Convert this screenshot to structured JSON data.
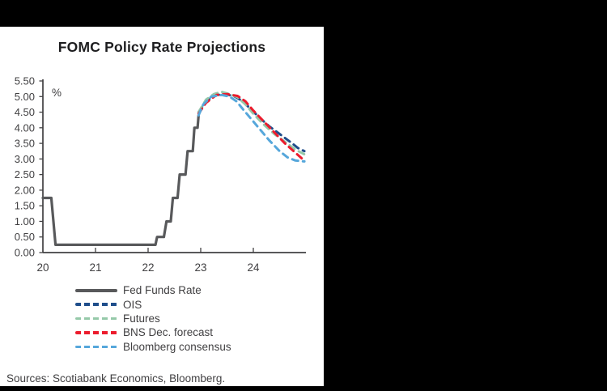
{
  "colors": {
    "background": "#000000",
    "card": "#ffffff",
    "axis": "#414042",
    "title_text": "#1d1d1f",
    "fed_gray": "#58595B",
    "ois_navy": "#1F4E8B",
    "futures_green": "#95C9A9",
    "bns_red": "#EC1C2D",
    "bloomberg_blue": "#56A7DB"
  },
  "sources": {
    "text": "Sources: Scotiabank Economics, Bloomberg."
  },
  "chart_data": {
    "type": "line",
    "title": "FOMC Policy Rate Projections",
    "unit_label": "%",
    "xlabel": "",
    "ylabel": "%",
    "grid": false,
    "legend_position": "below",
    "x_range": [
      2020,
      2025
    ],
    "ylim": [
      0,
      5.5
    ],
    "y_tick_step": 0.5,
    "y_ticks": [
      "0.00",
      "0.50",
      "1.00",
      "1.50",
      "2.00",
      "2.50",
      "3.00",
      "3.50",
      "4.00",
      "4.50",
      "5.00",
      "5.50"
    ],
    "x_ticks": [
      {
        "label": "20",
        "year": 2020
      },
      {
        "label": "21",
        "year": 2021
      },
      {
        "label": "22",
        "year": 2022
      },
      {
        "label": "23",
        "year": 2023
      },
      {
        "label": "24",
        "year": 2024
      }
    ],
    "series": [
      {
        "name": "Fed Funds Rate",
        "color": "#58595B",
        "style": "solid",
        "width": 3.2,
        "points": [
          [
            2020.0,
            1.75
          ],
          [
            2020.16,
            1.75
          ],
          [
            2020.24,
            0.25
          ],
          [
            2022.14,
            0.25
          ],
          [
            2022.17,
            0.5
          ],
          [
            2022.3,
            0.5
          ],
          [
            2022.35,
            1.0
          ],
          [
            2022.43,
            1.0
          ],
          [
            2022.47,
            1.75
          ],
          [
            2022.56,
            1.75
          ],
          [
            2022.6,
            2.5
          ],
          [
            2022.71,
            2.5
          ],
          [
            2022.75,
            3.25
          ],
          [
            2022.85,
            3.25
          ],
          [
            2022.88,
            4.0
          ],
          [
            2022.94,
            4.0
          ],
          [
            2022.96,
            4.4
          ]
        ]
      },
      {
        "name": "OIS",
        "color": "#1F4E8B",
        "style": "dashed",
        "width": 3,
        "points": [
          [
            2022.96,
            4.5
          ],
          [
            2023.1,
            4.85
          ],
          [
            2023.3,
            5.05
          ],
          [
            2023.5,
            5.07
          ],
          [
            2023.65,
            5.0
          ],
          [
            2023.8,
            4.85
          ],
          [
            2023.95,
            4.6
          ],
          [
            2024.1,
            4.35
          ],
          [
            2024.3,
            4.05
          ],
          [
            2024.5,
            3.8
          ],
          [
            2024.7,
            3.55
          ],
          [
            2024.85,
            3.35
          ],
          [
            2024.97,
            3.25
          ]
        ]
      },
      {
        "name": "Futures",
        "color": "#95C9A9",
        "style": "dashed",
        "width": 3,
        "points": [
          [
            2022.96,
            4.5
          ],
          [
            2023.1,
            4.9
          ],
          [
            2023.25,
            5.08
          ],
          [
            2023.4,
            5.15
          ],
          [
            2023.55,
            5.08
          ],
          [
            2023.7,
            4.98
          ],
          [
            2023.85,
            4.75
          ],
          [
            2024.0,
            4.45
          ],
          [
            2024.2,
            4.1
          ],
          [
            2024.4,
            3.8
          ],
          [
            2024.6,
            3.55
          ],
          [
            2024.8,
            3.3
          ],
          [
            2024.97,
            3.15
          ]
        ]
      },
      {
        "name": "BNS Dec. forecast",
        "color": "#EC1C2D",
        "style": "dashed",
        "width": 3,
        "points": [
          [
            2022.96,
            4.45
          ],
          [
            2023.1,
            4.8
          ],
          [
            2023.3,
            5.05
          ],
          [
            2023.5,
            5.08
          ],
          [
            2023.7,
            5.02
          ],
          [
            2023.85,
            4.85
          ],
          [
            2024.0,
            4.55
          ],
          [
            2024.2,
            4.2
          ],
          [
            2024.4,
            3.85
          ],
          [
            2024.6,
            3.5
          ],
          [
            2024.8,
            3.2
          ],
          [
            2024.92,
            3.02
          ],
          [
            2024.97,
            3.0
          ]
        ]
      },
      {
        "name": "Bloomberg consensus",
        "color": "#56A7DB",
        "style": "dashed",
        "width": 3,
        "points": [
          [
            2022.96,
            4.4
          ],
          [
            2023.05,
            4.75
          ],
          [
            2023.2,
            5.0
          ],
          [
            2023.4,
            5.05
          ],
          [
            2023.55,
            5.0
          ],
          [
            2023.68,
            4.85
          ],
          [
            2023.8,
            4.6
          ],
          [
            2023.95,
            4.3
          ],
          [
            2024.1,
            4.0
          ],
          [
            2024.3,
            3.6
          ],
          [
            2024.5,
            3.25
          ],
          [
            2024.65,
            3.05
          ],
          [
            2024.8,
            2.95
          ],
          [
            2024.97,
            2.92
          ]
        ]
      }
    ]
  }
}
